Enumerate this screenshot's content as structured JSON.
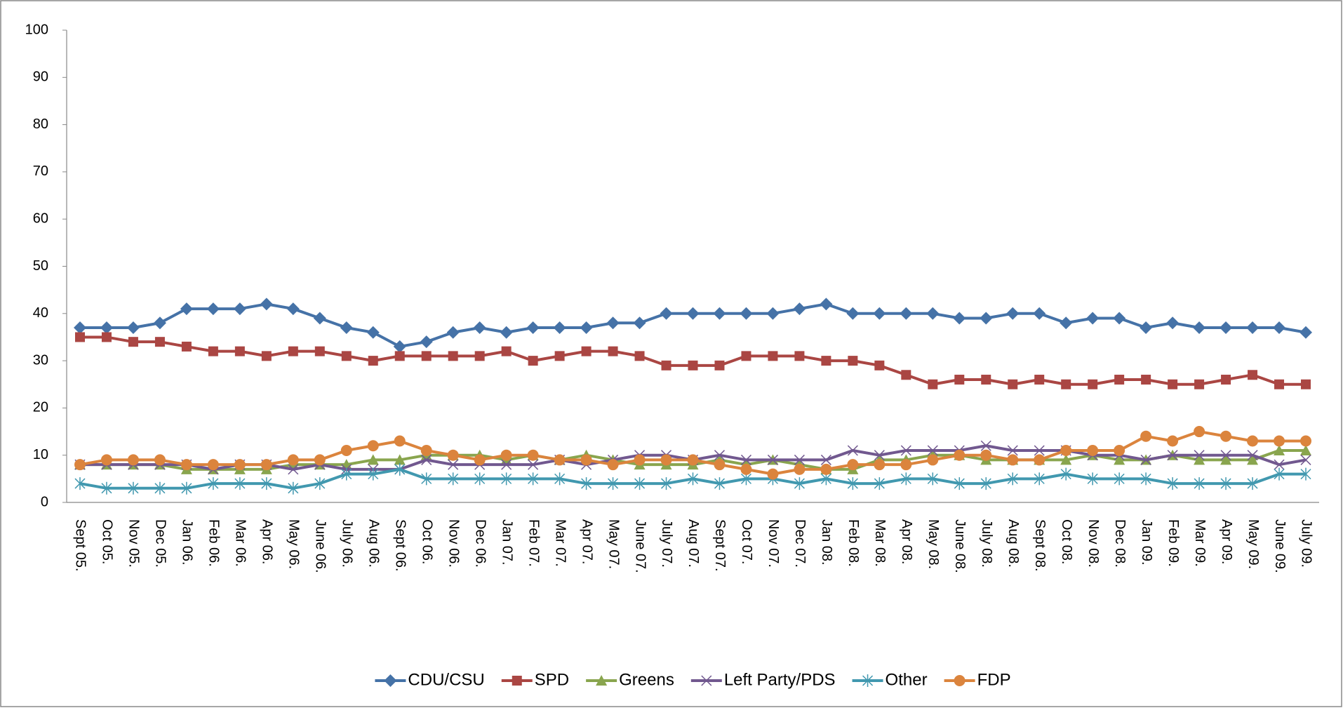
{
  "chart_data": {
    "type": "line",
    "categories": [
      "Sept 05.",
      "Oct 05.",
      "Nov 05.",
      "Dec 05.",
      "Jan 06.",
      "Feb 06.",
      "Mar 06.",
      "Apr 06.",
      "May 06.",
      "June 06.",
      "July 06.",
      "Aug 06.",
      "Sept 06.",
      "Oct 06.",
      "Nov 06.",
      "Dec 06.",
      "Jan 07.",
      "Feb 07.",
      "Mar 07.",
      "Apr 07.",
      "May 07.",
      "June 07.",
      "July 07.",
      "Aug 07.",
      "Sept 07.",
      "Oct 07.",
      "Nov 07.",
      "Dec 07.",
      "Jan 08.",
      "Feb 08.",
      "Mar 08.",
      "Apr 08.",
      "May 08.",
      "June 08.",
      "July 08.",
      "Aug 08.",
      "Sept 08.",
      "Oct 08.",
      "Nov 08.",
      "Dec 08.",
      "Jan 09.",
      "Feb 09.",
      "Mar 09.",
      "Apr 09.",
      "May 09.",
      "June 09.",
      "July 09."
    ],
    "series": [
      {
        "name": "CDU/CSU",
        "color": "#4572a7",
        "values": [
          37,
          37,
          37,
          38,
          41,
          41,
          41,
          42,
          41,
          39,
          37,
          36,
          33,
          34,
          36,
          37,
          36,
          37,
          37,
          37,
          38,
          38,
          40,
          40,
          40,
          40,
          40,
          41,
          42,
          40,
          40,
          40,
          40,
          39,
          39,
          40,
          40,
          38,
          39,
          39,
          37,
          38,
          37,
          37,
          37,
          37,
          36
        ]
      },
      {
        "name": "SPD",
        "color": "#aa4643",
        "values": [
          35,
          35,
          34,
          34,
          33,
          32,
          32,
          31,
          32,
          32,
          31,
          30,
          31,
          31,
          31,
          31,
          32,
          30,
          31,
          32,
          32,
          31,
          29,
          29,
          29,
          31,
          31,
          31,
          30,
          30,
          29,
          27,
          25,
          26,
          26,
          25,
          26,
          25,
          25,
          26,
          26,
          25,
          25,
          26,
          27,
          25,
          25
        ]
      },
      {
        "name": "Greens",
        "color": "#89a54e",
        "values": [
          8,
          8,
          8,
          8,
          7,
          7,
          7,
          7,
          8,
          8,
          8,
          9,
          9,
          10,
          10,
          10,
          9,
          10,
          9,
          10,
          9,
          8,
          8,
          8,
          9,
          8,
          9,
          8,
          7,
          7,
          9,
          9,
          10,
          10,
          9,
          9,
          9,
          9,
          10,
          9,
          9,
          10,
          9,
          9,
          9,
          11,
          11
        ]
      },
      {
        "name": "Left Party/PDS",
        "color": "#71588f",
        "values": [
          8,
          8,
          8,
          8,
          8,
          7,
          8,
          8,
          7,
          8,
          7,
          7,
          7,
          9,
          8,
          8,
          8,
          8,
          9,
          8,
          9,
          10,
          10,
          9,
          10,
          9,
          9,
          9,
          9,
          11,
          10,
          11,
          11,
          11,
          12,
          11,
          11,
          11,
          10,
          10,
          9,
          10,
          10,
          10,
          10,
          8,
          9
        ]
      },
      {
        "name": "Other",
        "color": "#4198af",
        "values": [
          4,
          3,
          3,
          3,
          3,
          4,
          4,
          4,
          3,
          4,
          6,
          6,
          7,
          5,
          5,
          5,
          5,
          5,
          5,
          4,
          4,
          4,
          4,
          5,
          4,
          5,
          5,
          4,
          5,
          4,
          4,
          5,
          5,
          4,
          4,
          5,
          5,
          6,
          5,
          5,
          5,
          4,
          4,
          4,
          4,
          6,
          6
        ]
      },
      {
        "name": "FDP",
        "color": "#db843d",
        "values": [
          8,
          9,
          9,
          9,
          8,
          8,
          8,
          8,
          9,
          9,
          11,
          12,
          13,
          11,
          10,
          9,
          10,
          10,
          9,
          9,
          8,
          9,
          9,
          9,
          8,
          7,
          6,
          7,
          7,
          8,
          8,
          8,
          9,
          10,
          10,
          9,
          9,
          11,
          11,
          11,
          14,
          13,
          15,
          14,
          13,
          13,
          13
        ]
      }
    ],
    "ylim": [
      0,
      100
    ],
    "yticks": [
      0,
      10,
      20,
      30,
      40,
      50,
      60,
      70,
      80,
      90,
      100
    ],
    "grid": false,
    "legend": "bottom"
  }
}
